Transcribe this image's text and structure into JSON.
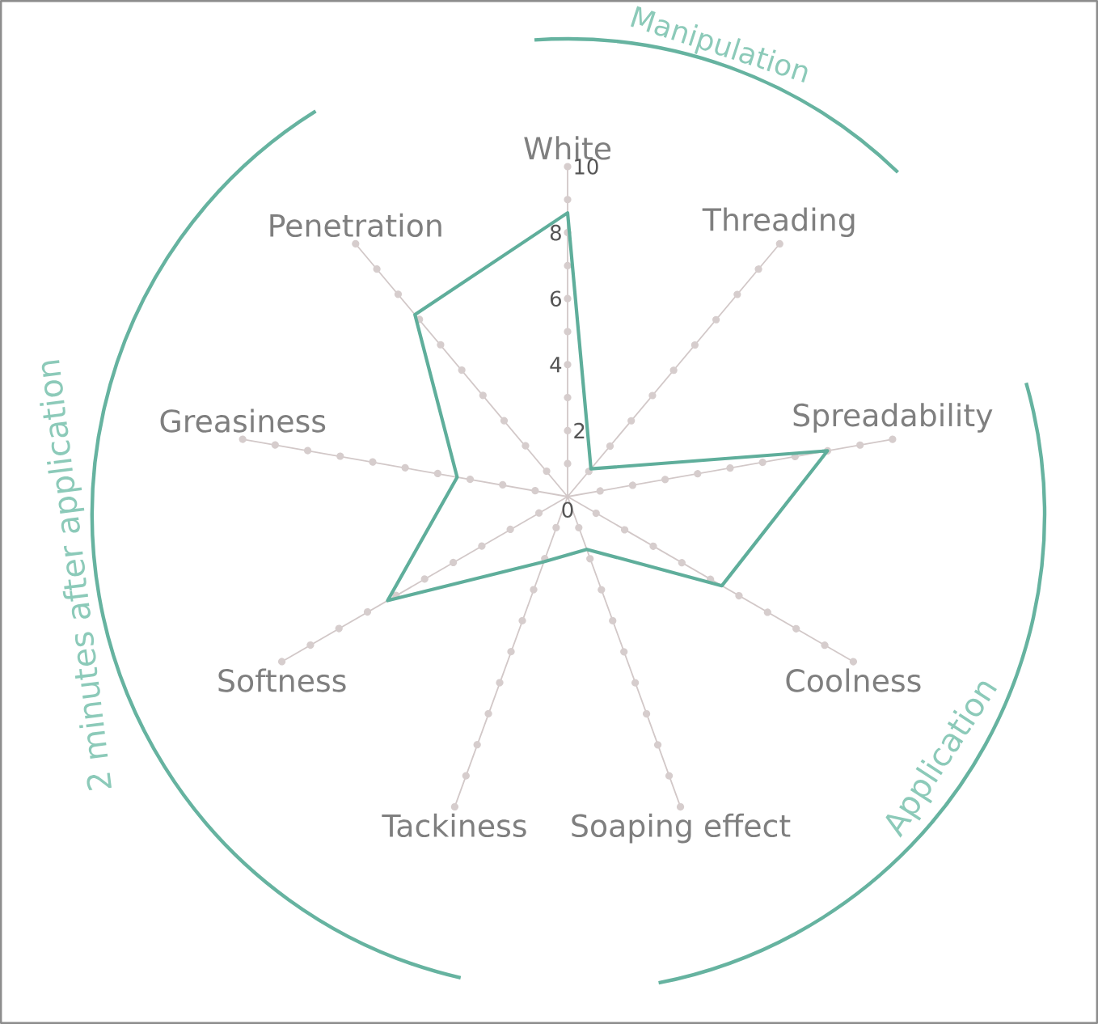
{
  "chart_data": {
    "type": "radar",
    "categories": [
      "White",
      "Threading",
      "Spreadability",
      "Coolness",
      "Soaping effect",
      "Tackiness",
      "Softness",
      "Greasiness",
      "Penetration"
    ],
    "series": [
      {
        "color": "#5fae9b",
        "values": [
          8.6,
          1.1,
          8.0,
          5.4,
          1.7,
          2.1,
          6.3,
          3.4,
          7.2
        ]
      }
    ],
    "ylim": [
      0,
      10
    ],
    "yticks": [
      0,
      2,
      4,
      6,
      8,
      10
    ],
    "grid": true,
    "annotations": [
      "Manipulation",
      "Application",
      "2 minutes after application"
    ]
  }
}
